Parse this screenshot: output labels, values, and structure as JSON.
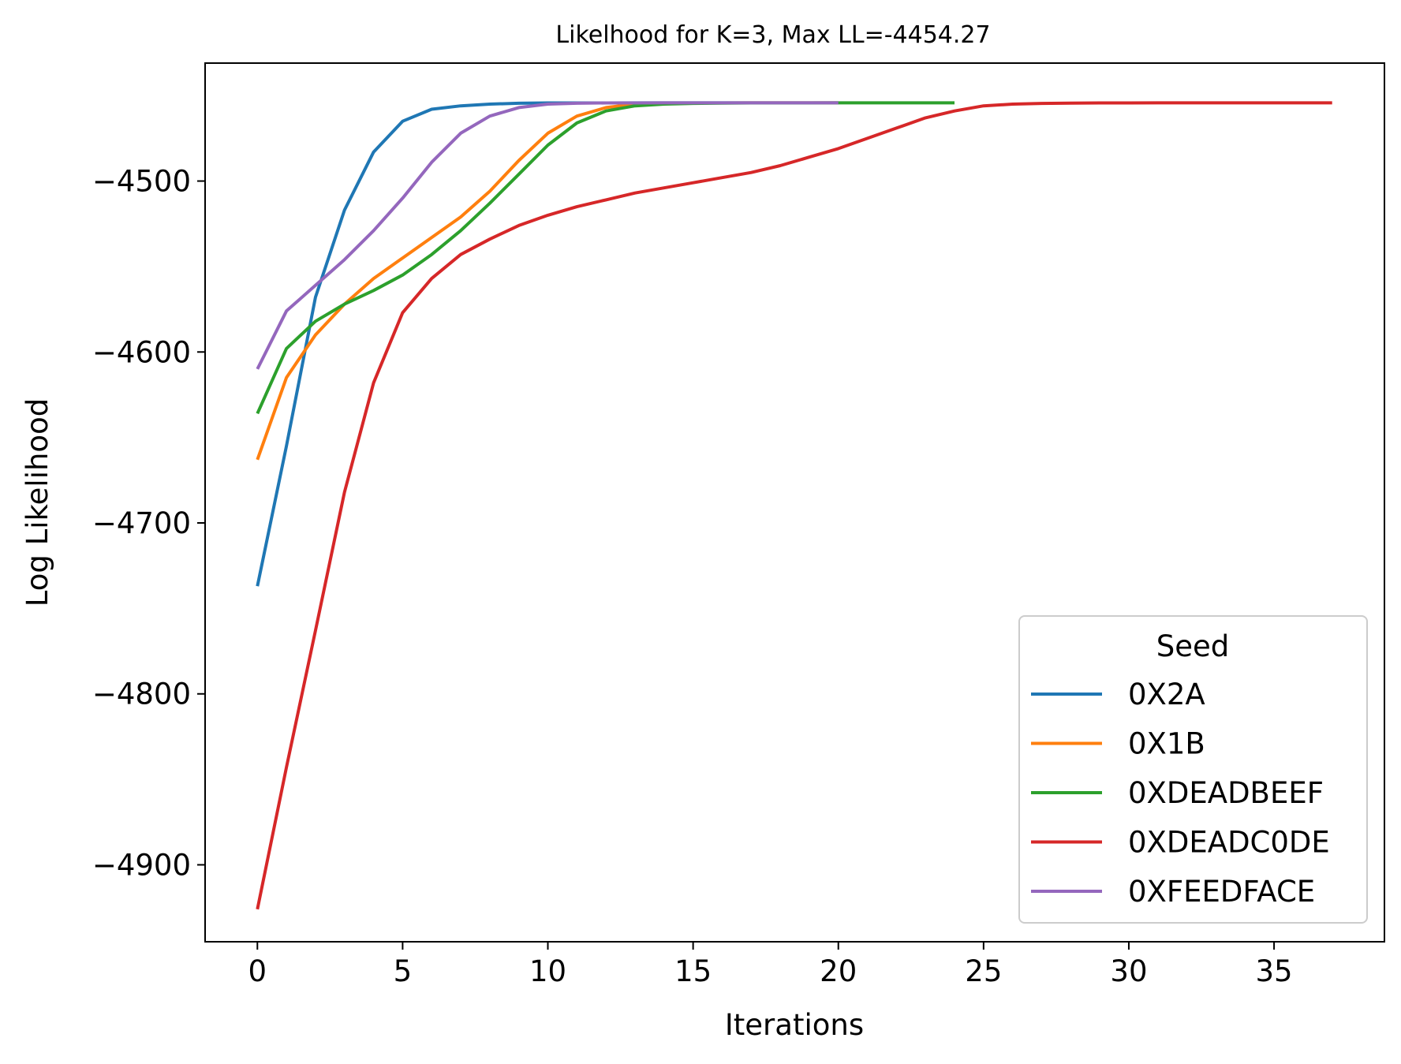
{
  "chart_data": {
    "type": "line",
    "title": "Likelhood for K=3,  Max LL=-4454.27",
    "xlabel": "Iterations",
    "ylabel": "Log Likelihood",
    "xlim": [
      -1.8,
      38.8
    ],
    "ylim": [
      -4945,
      -4431
    ],
    "xticks": [
      0,
      5,
      10,
      15,
      20,
      25,
      30,
      35
    ],
    "xtick_labels": [
      "0",
      "5",
      "10",
      "15",
      "20",
      "25",
      "30",
      "35"
    ],
    "yticks": [
      -4500,
      -4600,
      -4700,
      -4800,
      -4900
    ],
    "ytick_labels": [
      "−4500",
      "−4600",
      "−4700",
      "−4800",
      "−4900"
    ],
    "grid": false,
    "legend": {
      "title": "Seed",
      "position": "lower-right"
    },
    "series": [
      {
        "name": "0X2A",
        "color": "#1f77b4",
        "x": [
          0,
          1,
          2,
          3,
          4,
          5,
          6,
          7,
          8,
          9,
          10,
          11,
          12,
          13,
          14,
          15,
          16,
          17,
          18,
          19,
          20
        ],
        "y": [
          -4737,
          -4655,
          -4568,
          -4517,
          -4483,
          -4465,
          -4458,
          -4456,
          -4455,
          -4454.5,
          -4454.3,
          -4454.3,
          -4454.3,
          -4454.27,
          -4454.27,
          -4454.27,
          -4454.27,
          -4454.27,
          -4454.27,
          -4454.27,
          -4454.27
        ]
      },
      {
        "name": "0X1B",
        "color": "#ff7f0e",
        "x": [
          0,
          1,
          2,
          3,
          4,
          5,
          6,
          7,
          8,
          9,
          10,
          11,
          12,
          13,
          14,
          15,
          16,
          17,
          18,
          19,
          20
        ],
        "y": [
          -4663,
          -4615,
          -4590,
          -4572,
          -4557,
          -4545,
          -4533,
          -4521,
          -4506,
          -4488,
          -4472,
          -4462,
          -4457,
          -4455,
          -4454.5,
          -4454.3,
          -4454.3,
          -4454.27,
          -4454.27,
          -4454.27,
          -4454.27
        ]
      },
      {
        "name": "0XDEADBEEF",
        "color": "#2ca02c",
        "x": [
          0,
          1,
          2,
          3,
          4,
          5,
          6,
          7,
          8,
          9,
          10,
          11,
          12,
          13,
          14,
          15,
          16,
          17,
          18,
          19,
          20,
          21,
          22,
          23,
          24
        ],
        "y": [
          -4636,
          -4598,
          -4582,
          -4572,
          -4564,
          -4555,
          -4543,
          -4529,
          -4513,
          -4496,
          -4479,
          -4466,
          -4459,
          -4456,
          -4455,
          -4454.6,
          -4454.4,
          -4454.3,
          -4454.3,
          -4454.28,
          -4454.27,
          -4454.27,
          -4454.27,
          -4454.27,
          -4454.27
        ]
      },
      {
        "name": "0XDEADC0DE",
        "color": "#d62728",
        "x": [
          0,
          1,
          2,
          3,
          4,
          5,
          6,
          7,
          8,
          9,
          10,
          11,
          12,
          13,
          14,
          15,
          16,
          17,
          18,
          19,
          20,
          21,
          22,
          23,
          24,
          25,
          26,
          27,
          28,
          29,
          30,
          31,
          32,
          33,
          34,
          35,
          36,
          37
        ],
        "y": [
          -4926,
          -4843,
          -4763,
          -4682,
          -4618,
          -4577,
          -4557,
          -4543,
          -4534,
          -4526,
          -4520,
          -4515,
          -4511,
          -4507,
          -4504,
          -4501,
          -4498,
          -4495,
          -4491,
          -4486,
          -4481,
          -4475,
          -4469,
          -4463,
          -4459,
          -4456,
          -4455,
          -4454.6,
          -4454.4,
          -4454.3,
          -4454.28,
          -4454.27,
          -4454.27,
          -4454.27,
          -4454.27,
          -4454.27,
          -4454.27,
          -4454.27
        ]
      },
      {
        "name": "0XFEEDFACE",
        "color": "#9467bd",
        "x": [
          0,
          1,
          2,
          3,
          4,
          5,
          6,
          7,
          8,
          9,
          10,
          11,
          12,
          13,
          14,
          15,
          16,
          17,
          18,
          19,
          20
        ],
        "y": [
          -4610,
          -4576,
          -4561,
          -4546,
          -4529,
          -4510,
          -4489,
          -4472,
          -4462,
          -4457,
          -4455,
          -4454.5,
          -4454.3,
          -4454.3,
          -4454.27,
          -4454.27,
          -4454.27,
          -4454.27,
          -4454.27,
          -4454.27,
          -4454.27
        ]
      }
    ]
  }
}
